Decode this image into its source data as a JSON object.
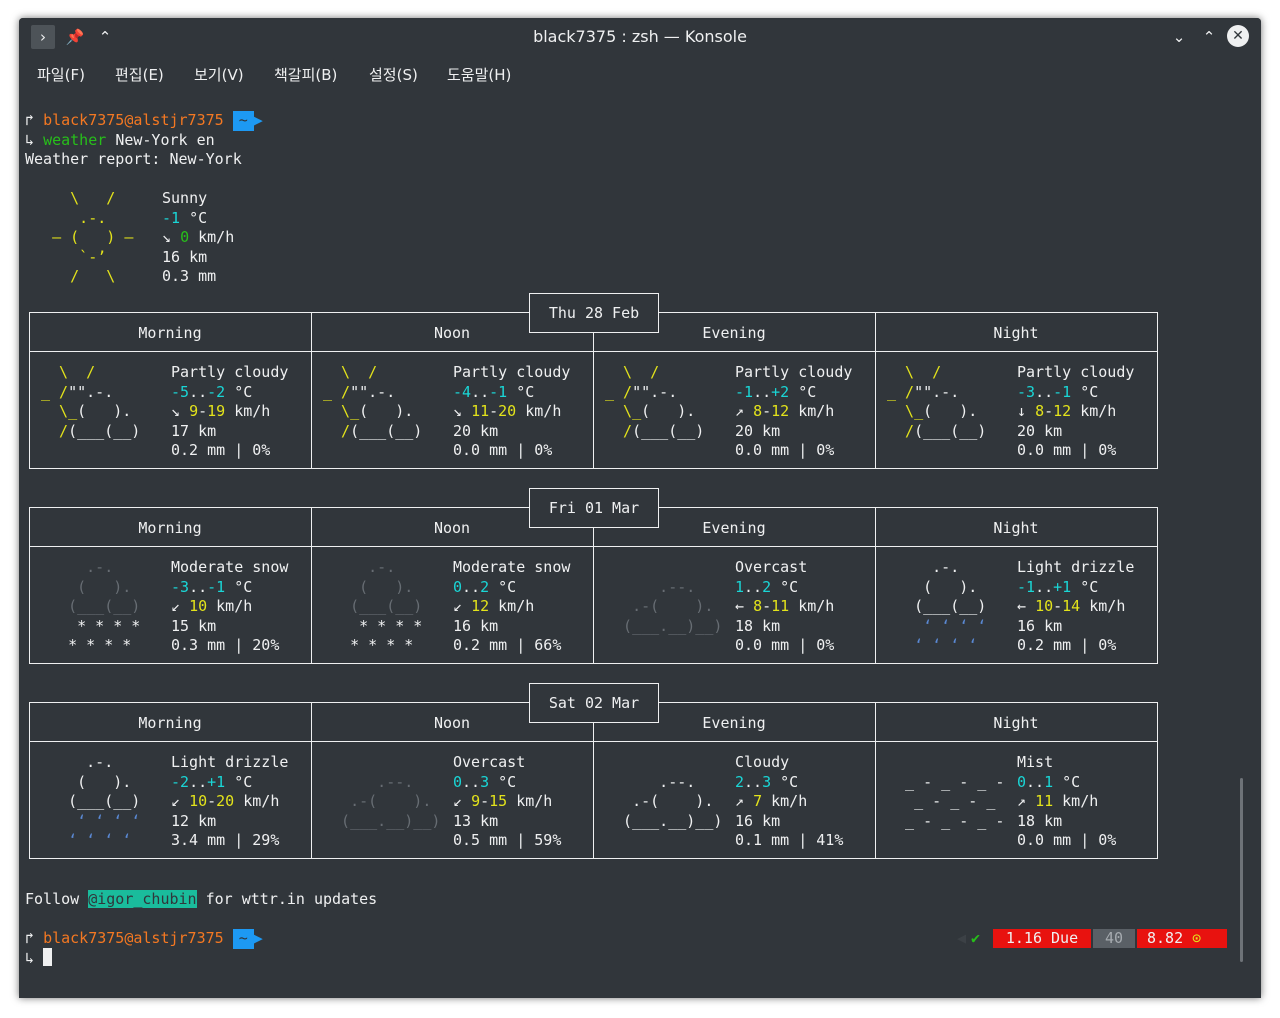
{
  "window": {
    "title": "black7375 : zsh — Konsole"
  },
  "menu": [
    "파일(F)",
    "편집(E)",
    "보기(V)",
    "책갈피(B)",
    "설정(S)",
    "도움말(H)"
  ],
  "prompt": {
    "user": "black7375@alstjr7375",
    "dir": "~",
    "cmd": "weather",
    "args": "New-York en"
  },
  "report_title": "Weather report: New-York",
  "current": {
    "cond": "Sunny",
    "temp": "-1",
    "unit": " °C",
    "wind_arrow": "↘",
    "wind": "0",
    "wind_unit": " km/h",
    "vis": "16 km",
    "precip": "0.3 mm"
  },
  "periods": [
    "Morning",
    "Noon",
    "Evening",
    "Night"
  ],
  "days": [
    {
      "date": "Thu 28 Feb",
      "slots": [
        {
          "art": "partly",
          "cond": "Partly cloudy",
          "t1": "-5",
          "t2": "-2",
          "arrow": "↘",
          "w1": "9",
          "w2": "19",
          "vis": "17 km",
          "precip": "0.2 mm | 0%"
        },
        {
          "art": "partly",
          "cond": "Partly cloudy",
          "t1": "-4",
          "t2": "-1",
          "arrow": "↘",
          "w1": "11",
          "w2": "20",
          "vis": "20 km",
          "precip": "0.0 mm | 0%"
        },
        {
          "art": "partly",
          "cond": "Partly cloudy",
          "t1": "-1",
          "t2": "+2",
          "arrow": "↗",
          "w1": "8",
          "w2": "12",
          "vis": "20 km",
          "precip": "0.0 mm | 0%"
        },
        {
          "art": "partly",
          "cond": "Partly cloudy",
          "t1": "-3",
          "t2": "-1",
          "arrow": "↓",
          "w1": "8",
          "w2": "12",
          "vis": "20 km",
          "precip": "0.0 mm | 0%"
        }
      ]
    },
    {
      "date": "Fri 01 Mar",
      "slots": [
        {
          "art": "snow",
          "cond": "Moderate snow",
          "t1": "-3",
          "t2": "-1",
          "arrow": "↙",
          "w1": "10",
          "w2": "",
          "vis": "15 km",
          "precip": "0.3 mm | 20%"
        },
        {
          "art": "snow",
          "cond": "Moderate snow",
          "t1": "0",
          "t2": "2",
          "arrow": "↙",
          "w1": "12",
          "w2": "",
          "vis": "16 km",
          "precip": "0.2 mm | 66%"
        },
        {
          "art": "overcast",
          "cond": "Overcast",
          "t1": "1",
          "t2": "2",
          "arrow": "←",
          "w1": "8",
          "w2": "11",
          "vis": "18 km",
          "precip": "0.0 mm | 0%"
        },
        {
          "art": "drizzle",
          "cond": "Light drizzle",
          "t1": "-1",
          "t2": "+1",
          "arrow": "←",
          "w1": "10",
          "w2": "14",
          "vis": "16 km",
          "precip": "0.2 mm | 0%"
        }
      ]
    },
    {
      "date": "Sat 02 Mar",
      "slots": [
        {
          "art": "drizzle",
          "cond": "Light drizzle",
          "t1": "-2",
          "t2": "+1",
          "arrow": "↙",
          "w1": "10",
          "w2": "20",
          "vis": "12 km",
          "precip": "3.4 mm | 29%"
        },
        {
          "art": "overcast",
          "cond": "Overcast",
          "t1": "0",
          "t2": "3",
          "arrow": "↙",
          "w1": "9",
          "w2": "15",
          "vis": "13 km",
          "precip": "0.5 mm | 59%"
        },
        {
          "art": "cloudy",
          "cond": "Cloudy",
          "t1": "2",
          "t2": "3",
          "arrow": "↗",
          "w1": "7",
          "w2": "",
          "vis": "16 km",
          "precip": "0.1 mm | 41%"
        },
        {
          "art": "mist",
          "cond": "Mist",
          "t1": "0",
          "t2": "1",
          "arrow": "↗",
          "w1": "11",
          "w2": "",
          "vis": "18 km",
          "precip": "0.0 mm | 0%"
        }
      ]
    }
  ],
  "follow": {
    "pre": "Follow ",
    "handle": "@igor_chubin",
    "post": " for wttr.in updates"
  },
  "status": {
    "check": "✔",
    "due": "1.16 Due",
    "count": "40",
    "score": "8.82"
  },
  "colors": {
    "bg": "#31363b",
    "orange": "#f47822",
    "green": "#27bf1a",
    "yellow": "#e3e31b",
    "cyan": "#1ad6d6",
    "prompt_tag": "#1d99f3",
    "due_bg": "#e8120f",
    "count_bg": "#5a6066"
  }
}
